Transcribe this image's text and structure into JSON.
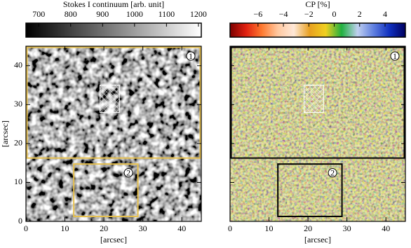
{
  "chart_data": [
    {
      "type": "image",
      "colormap": "gray",
      "colorbar": {
        "label": "Stokes I continuum [arb. unit]",
        "lim": [
          660,
          1209
        ],
        "ticks": [
          700,
          800,
          900,
          1000,
          1100,
          1200
        ],
        "colors": [
          "#000000",
          "#ffffff"
        ]
      },
      "xlabel": "[arcsec]",
      "ylabel": "[arcsec]",
      "xlim": [
        0,
        45
      ],
      "ylim": [
        0,
        45
      ],
      "xticks": [
        0,
        10,
        20,
        30,
        40
      ],
      "yticks": [
        0,
        10,
        20,
        30,
        40
      ],
      "box_color": "#e6c04e",
      "boxes": [
        {
          "label": "1",
          "x": [
            0,
            45
          ],
          "y": [
            16,
            45
          ]
        },
        {
          "label": "2",
          "x": [
            12,
            29
          ],
          "y": [
            1,
            15
          ]
        }
      ],
      "hatch_region": {
        "x": [
          19,
          24
        ],
        "y": [
          28,
          35
        ]
      }
    },
    {
      "type": "image",
      "colormap": "cp",
      "colorbar": {
        "label": "CP [%]",
        "lim": [
          -8.2,
          5.6
        ],
        "ticks": [
          {
            "value": -6,
            "label": "−6"
          },
          {
            "value": -4,
            "label": "−4"
          },
          {
            "value": -2,
            "label": "−2"
          },
          0,
          2,
          4
        ],
        "colors": [
          "#7a0000",
          "#e02010",
          "#ff7a30",
          "#ffc8a0",
          "#ffe8d8",
          "#e8a020",
          "#f0d020",
          "#20b040",
          "#c0d0f0",
          "#6080e0",
          "#1030c0",
          "#000060"
        ]
      },
      "xlabel": "[arcsec]",
      "xlim": [
        0,
        45
      ],
      "ylim": [
        0,
        45
      ],
      "xticks": [
        0,
        10,
        20,
        30,
        40
      ],
      "yticks": [
        0,
        10,
        20,
        30,
        40
      ],
      "box_color": "#000000",
      "boxes": [
        {
          "label": "1",
          "x": [
            0,
            45
          ],
          "y": [
            16,
            45
          ]
        },
        {
          "label": "2",
          "x": [
            12,
            29
          ],
          "y": [
            1,
            15
          ]
        }
      ],
      "hatch_region": {
        "x": [
          19,
          24
        ],
        "y": [
          28,
          35
        ]
      }
    }
  ]
}
